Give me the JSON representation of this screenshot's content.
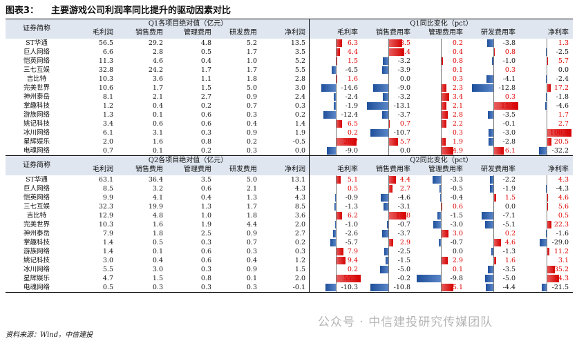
{
  "title": {
    "figure": "图表3：",
    "text": "主要游戏公司利润率同比提升的驱动因素对比"
  },
  "source": "资料来源：Wind，中信建投",
  "watermark": "公众号 · 中信建投研究传媒团队",
  "colors": {
    "header_bg": "#dfe6f0",
    "positive": "#d40000",
    "negative": "#1e4f9a"
  },
  "col_names": [
    "毛利润",
    "销售费用",
    "管理费用",
    "研发费用",
    "净利润"
  ],
  "chg_names": [
    "毛利率",
    "销售费用率",
    "管理费用率",
    "研发费用率",
    "净利率"
  ],
  "sections": [
    {
      "label": "证券简称",
      "abs_title": "Q1各项目绝对值（亿元）",
      "chg_title": "Q1同比变化（pct）",
      "rows": [
        {
          "name": "ST华通",
          "abs": [
            "56.5",
            "29.2",
            "4.8",
            "5.2",
            "13.5"
          ],
          "chg": [
            6.3,
            8.5,
            0.2,
            -3.8,
            1.3
          ]
        },
        {
          "name": "巨人网络",
          "abs": [
            "6.6",
            "2.8",
            "0.5",
            "1.7",
            "3.5"
          ],
          "chg": [
            4.4,
            9.4,
            0.4,
            0.8,
            -2.5
          ]
        },
        {
          "name": "恺英网络",
          "abs": [
            "11.3",
            "4.6",
            "0.4",
            "1.0",
            "5.2"
          ],
          "chg": [
            1.5,
            -3.2,
            0.8,
            -1.0,
            5.7
          ]
        },
        {
          "name": "三七互娱",
          "abs": [
            "32.8",
            "24.2",
            "1.7",
            "1.7",
            "5.5"
          ],
          "chg": [
            -4.5,
            -3.9,
            0.1,
            0.3,
            0.0
          ]
        },
        {
          "name": "吉比特",
          "abs": [
            "10.3",
            "3.6",
            "1.1",
            "1.8",
            "2.8"
          ],
          "chg": [
            1.6,
            0.0,
            0.3,
            -4.1,
            -2.4
          ]
        },
        {
          "name": "完美世界",
          "abs": [
            "10.6",
            "1.7",
            "1.5",
            "5.0",
            "3.0"
          ],
          "chg": [
            -14.6,
            -9.0,
            2.3,
            -12.8,
            17.2
          ]
        },
        {
          "name": "神州泰岳",
          "abs": [
            "8.1",
            "2.1",
            "2.7",
            "0.9",
            "2.4"
          ],
          "chg": [
            -2.4,
            -3.2,
            3.4,
            0.3,
            -1.8
          ]
        },
        {
          "name": "掌趣科技",
          "abs": [
            "1.2",
            "0.4",
            "0.2",
            "0.7",
            "0.3"
          ],
          "chg": [
            -1.9,
            -13.1,
            2.1,
            15.0,
            -4.6
          ]
        },
        {
          "name": "游族网络",
          "abs": [
            "1.3",
            "0.1",
            "0.6",
            "0.3",
            "0.2"
          ],
          "chg": [
            -12.4,
            -3.7,
            2.8,
            -3.5,
            1.7
          ]
        },
        {
          "name": "姚记科技",
          "abs": [
            "3.4",
            "0.6",
            "0.6",
            "0.4",
            "1.4"
          ],
          "chg": [
            6.5,
            0.7,
            2.2,
            -0.1,
            2.7
          ]
        },
        {
          "name": "冰川网络",
          "abs": [
            "6.1",
            "3.1",
            "0.3",
            "0.9",
            "1.9"
          ],
          "chg": [
            0.2,
            -10.7,
            0.3,
            -3.0,
            108.4
          ]
        },
        {
          "name": "星辉娱乐",
          "abs": [
            "2.0",
            "1.6",
            "0.8",
            "0.2",
            "-0.5"
          ],
          "chg": [
            20.7,
            5.7,
            1.9,
            -2.8,
            20.5
          ]
        },
        {
          "name": "电魂网络",
          "abs": [
            "0.7",
            "0.1",
            "0.2",
            "0.3",
            "0.0"
          ],
          "chg": [
            -9.0,
            0.0,
            4.9,
            6.1,
            -32.2
          ]
        }
      ]
    },
    {
      "label": "证券简称",
      "abs_title": "Q2各项目绝对值（亿元）",
      "chg_title": "Q2同比变化（pct）",
      "rows": [
        {
          "name": "ST华通",
          "abs": [
            "63.1",
            "36.4",
            "3.5",
            "5.0",
            "13.1"
          ],
          "chg": [
            5.1,
            4.4,
            -3.3,
            -2.2,
            4.3
          ]
        },
        {
          "name": "巨人网络",
          "abs": [
            "8.5",
            "3.2",
            "0.6",
            "2.1",
            "4.3"
          ],
          "chg": [
            0.5,
            2.7,
            -0.5,
            -1.9,
            -4.3
          ]
        },
        {
          "name": "恺英网络",
          "abs": [
            "9.9",
            "4.1",
            "0.4",
            "1.3",
            "4.3"
          ],
          "chg": [
            -0.9,
            -4.6,
            -0.4,
            1.5,
            4.6
          ]
        },
        {
          "name": "三七互娱",
          "abs": [
            "32.3",
            "19.9",
            "1.3",
            "1.7",
            "8.5"
          ],
          "chg": [
            -1.3,
            -3.1,
            0.6,
            0.0,
            5.6
          ]
        },
        {
          "name": "吉比特",
          "abs": [
            "12.9",
            "4.8",
            "1.0",
            "1.8",
            "3.6"
          ],
          "chg": [
            6.2,
            10.8,
            -1.5,
            -7.1,
            0.5
          ]
        },
        {
          "name": "完美世界",
          "abs": [
            "10.3",
            "1.6",
            "1.9",
            "4.4",
            "2.0"
          ],
          "chg": [
            -1.0,
            -0.7,
            -3.0,
            -5.1,
            22.3
          ]
        },
        {
          "name": "神州泰岳",
          "abs": [
            "7.9",
            "1.8",
            "2.5",
            "0.9",
            "2.7"
          ],
          "chg": [
            -2.6,
            -3.7,
            3.0,
            0.2,
            -1.6
          ]
        },
        {
          "name": "掌趣科技",
          "abs": [
            "1.4",
            "0.5",
            "0.3",
            "0.7",
            "0.2"
          ],
          "chg": [
            -5.7,
            2.9,
            -0.7,
            4.6,
            -29.0
          ]
        },
        {
          "name": "游族网络",
          "abs": [
            "1.4",
            "0.1",
            "0.6",
            "0.3",
            "0.3"
          ],
          "chg": [
            7.9,
            -2.5,
            0.0,
            -1.3,
            11.2
          ]
        },
        {
          "name": "姚记科技",
          "abs": [
            "3.0",
            "0.4",
            "0.6",
            "0.4",
            "1.2"
          ],
          "chg": [
            9.4,
            -1.5,
            2.9,
            1.6,
            3.1
          ]
        },
        {
          "name": "冰川网络",
          "abs": [
            "5.5",
            "3.0",
            "0.3",
            "0.9",
            "1.5"
          ],
          "chg": [
            0.2,
            -5.0,
            0.1,
            -3.5,
            35.2
          ]
        },
        {
          "name": "星辉娱乐",
          "abs": [
            "4.7",
            "1.5",
            "0.8",
            "0.1",
            "2.0"
          ],
          "chg": [
            55.3,
            -0.2,
            -9.8,
            -5.0,
            54.3
          ]
        },
        {
          "name": "电魂网络",
          "abs": [
            "0.5",
            "0.3",
            "0.3",
            "0.3",
            "-0.1"
          ],
          "chg": [
            -10.3,
            -10.8,
            5.1,
            -4.4,
            -21.5
          ]
        }
      ]
    }
  ]
}
